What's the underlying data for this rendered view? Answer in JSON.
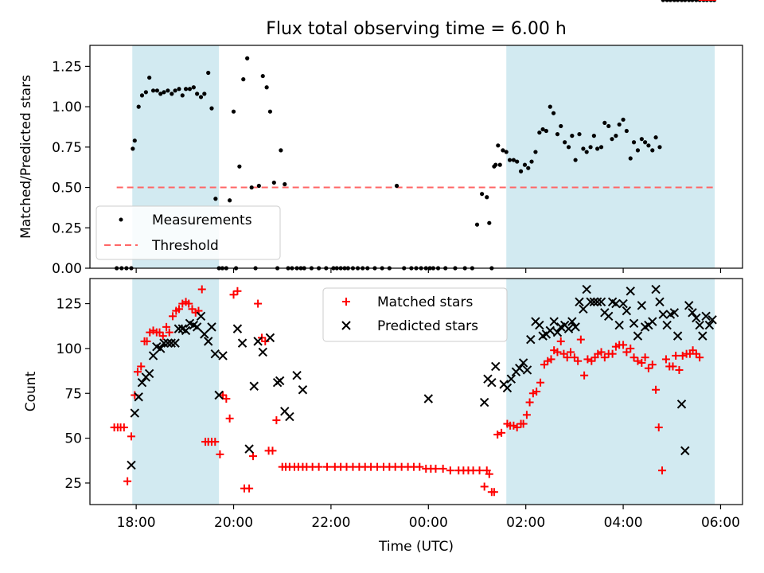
{
  "title": "Flux total observing time = 6.00 h",
  "colors": {
    "span": "#add8e6",
    "measurement": "#000000",
    "threshold": "#ff6666",
    "matched": "#ff0000",
    "predicted": "#000000"
  },
  "chart_data": [
    {
      "type": "scatter",
      "ylabel": "Matched/Predicted stars",
      "ylim": [
        0,
        1.38
      ],
      "yticks": [
        0.0,
        0.25,
        0.5,
        0.75,
        1.0,
        1.25
      ],
      "ytick_labels": [
        "0.00",
        "0.25",
        "0.50",
        "0.75",
        "1.00",
        "1.25"
      ],
      "threshold": 0.5,
      "legend": [
        "Measurements",
        "Threshold"
      ],
      "legend_position": "lower-left",
      "x_hours": [
        17.6,
        17.7,
        17.8,
        17.9,
        17.93,
        17.97,
        18.05,
        18.12,
        18.2,
        18.27,
        18.35,
        18.43,
        18.5,
        18.57,
        18.65,
        18.73,
        18.8,
        18.88,
        18.95,
        19.02,
        19.1,
        19.18,
        19.25,
        19.33,
        19.4,
        19.48,
        19.55,
        19.63,
        19.7,
        19.77,
        19.85,
        19.92,
        20.0,
        20.05,
        20.12,
        20.2,
        20.28,
        20.37,
        20.45,
        20.52,
        20.6,
        20.68,
        20.75,
        20.83,
        20.9,
        20.97,
        21.05,
        21.12,
        21.2,
        21.3,
        21.38,
        21.45,
        21.6,
        21.75,
        21.9,
        22.05,
        22.12,
        22.2,
        22.28,
        22.35,
        22.45,
        22.55,
        22.65,
        22.75,
        22.9,
        23.05,
        23.2,
        23.35,
        23.5,
        23.65,
        23.75,
        23.85,
        23.95,
        24.03,
        24.1,
        24.2,
        24.35,
        24.55,
        24.75,
        24.9,
        25.0,
        25.1,
        25.2,
        25.25,
        25.3,
        25.35,
        25.38,
        25.43,
        25.47,
        25.53,
        25.6,
        25.67,
        25.75,
        25.82,
        25.9,
        25.98,
        26.05,
        26.12,
        26.2,
        26.28,
        26.35,
        26.42,
        26.5,
        26.57,
        26.65,
        26.72,
        26.8,
        26.88,
        26.95,
        27.02,
        27.1,
        27.18,
        27.25,
        27.33,
        27.4,
        27.47,
        27.55,
        27.62,
        27.7,
        27.77,
        27.85,
        27.92,
        28.0,
        28.07,
        28.15,
        28.22,
        28.3,
        28.38,
        28.45,
        28.52,
        28.6,
        28.67,
        28.75,
        28.82,
        28.9,
        28.97,
        29.05,
        29.12,
        29.2,
        29.27,
        29.35,
        29.42,
        29.5,
        29.57,
        29.65,
        29.72,
        29.8,
        29.87
      ],
      "ratio": [
        0,
        0,
        0,
        0,
        0.74,
        0.79,
        1.0,
        1.07,
        1.09,
        1.18,
        1.1,
        1.1,
        1.08,
        1.09,
        1.1,
        1.08,
        1.1,
        1.11,
        1.07,
        1.11,
        1.11,
        1.12,
        1.08,
        1.06,
        1.08,
        1.21,
        0.99,
        0.43,
        0,
        0,
        0,
        0.42,
        0.97,
        0,
        0.63,
        1.17,
        1.3,
        0.5,
        0,
        0.51,
        1.19,
        1.12,
        0.97,
        0.53,
        0,
        0.73,
        0.52,
        0,
        0,
        0,
        0,
        0,
        0,
        0,
        0,
        0,
        0,
        0,
        0,
        0,
        0,
        0,
        0,
        0,
        0,
        0,
        0,
        0.51,
        0,
        0,
        0,
        0,
        0,
        0,
        0,
        0,
        0,
        0,
        0,
        0,
        0.27,
        0.46,
        0.44,
        0.28,
        0,
        0.63,
        0.64,
        0.76,
        0.64,
        0.73,
        0.72,
        0.67,
        0.67,
        0.66,
        0.6,
        0.64,
        0.62,
        0.66,
        0.72,
        0.84,
        0.86,
        0.85,
        1.0,
        0.96,
        0.83,
        0.88,
        0.78,
        0.75,
        0.82,
        0.67,
        0.83,
        0.74,
        0.72,
        0.75,
        0.82,
        0.74,
        0.75,
        0.9,
        0.88,
        0.8,
        0.82,
        0.89,
        0.92,
        0.85,
        0.68,
        0.78,
        0.73,
        0.8,
        0.78,
        0.76,
        0.73,
        0.81,
        0.75
      ]
    },
    {
      "type": "scatter",
      "xlabel": "Time (UTC)",
      "ylabel": "Count",
      "ylim": [
        13,
        139
      ],
      "yticks": [
        25,
        50,
        75,
        100,
        125
      ],
      "ytick_labels": [
        "25",
        "50",
        "75",
        "100",
        "125"
      ],
      "legend": [
        "Matched stars",
        "Predicted stars"
      ],
      "legend_position": "upper-center",
      "matched_x": [
        17.55,
        17.62,
        17.68,
        17.75,
        17.82,
        17.9,
        17.97,
        18.03,
        18.1,
        18.17,
        18.22,
        18.28,
        18.35,
        18.42,
        18.48,
        18.55,
        18.62,
        18.68,
        18.75,
        18.82,
        18.88,
        18.95,
        19.02,
        19.08,
        19.15,
        19.22,
        19.28,
        19.35,
        19.42,
        19.48,
        19.55,
        19.62,
        19.72,
        19.78,
        19.85,
        19.92,
        20.0,
        20.08,
        20.22,
        20.32,
        20.4,
        20.5,
        20.58,
        20.65,
        20.72,
        20.8,
        20.88,
        21.0,
        21.07,
        21.15,
        21.25,
        21.33,
        21.42,
        21.5,
        21.62,
        21.75,
        21.92,
        22.08,
        22.2,
        22.32,
        22.45,
        22.58,
        22.7,
        22.82,
        22.95,
        23.08,
        23.2,
        23.32,
        23.45,
        23.58,
        23.7,
        23.82,
        23.95,
        24.05,
        24.15,
        24.3,
        24.45,
        24.62,
        24.72,
        24.82,
        24.92,
        25.05,
        25.15,
        25.2,
        25.25,
        25.3,
        25.35,
        25.42,
        25.5,
        25.62,
        25.68,
        25.75,
        25.82,
        25.9,
        25.95,
        26.02,
        26.08,
        26.15,
        26.22,
        26.3,
        26.38,
        26.45,
        26.52,
        26.58,
        26.65,
        26.72,
        26.78,
        26.85,
        26.92,
        27.0,
        27.07,
        27.13,
        27.2,
        27.27,
        27.35,
        27.42,
        27.48,
        27.55,
        27.62,
        27.7,
        27.78,
        27.85,
        27.92,
        28.0,
        28.07,
        28.15,
        28.22,
        28.3,
        28.38,
        28.45,
        28.52,
        28.6,
        28.67,
        28.73,
        28.8,
        28.88,
        28.95,
        29.02,
        29.08,
        29.15,
        29.22,
        29.3,
        29.37,
        29.43,
        29.5,
        29.57,
        29.63,
        29.7,
        29.77,
        29.83
      ],
      "matched_y": [
        56,
        56,
        56,
        56,
        26,
        51,
        74,
        87,
        90,
        104,
        104,
        109,
        110,
        109,
        109,
        107,
        112,
        109,
        118,
        121,
        122,
        125,
        126,
        125,
        122,
        120,
        121,
        133,
        48,
        48,
        48,
        48,
        41,
        74,
        72,
        61,
        130,
        132,
        22,
        22,
        40,
        125,
        106,
        104,
        43,
        43,
        60,
        34,
        34,
        34,
        34,
        34,
        34,
        34,
        34,
        34,
        34,
        34,
        34,
        34,
        34,
        34,
        34,
        34,
        34,
        34,
        34,
        34,
        34,
        34,
        34,
        34,
        33,
        33,
        33,
        33,
        32,
        32,
        32,
        32,
        32,
        32,
        23,
        32,
        30,
        20,
        20,
        52,
        53,
        58,
        57,
        57,
        56,
        58,
        58,
        63,
        70,
        75,
        76,
        81,
        91,
        93,
        94,
        99,
        98,
        104,
        97,
        95,
        98,
        95,
        93,
        105,
        85,
        94,
        93,
        95,
        97,
        98,
        95,
        97,
        97,
        101,
        102,
        102,
        98,
        100,
        95,
        93,
        92,
        95,
        89,
        91,
        77,
        56,
        32,
        94,
        90,
        90,
        96,
        88,
        96,
        97,
        97,
        99,
        97,
        95
      ],
      "predicted_x": [
        17.9,
        17.97,
        18.05,
        18.12,
        18.2,
        18.27,
        18.35,
        18.42,
        18.5,
        18.57,
        18.65,
        18.72,
        18.8,
        18.87,
        18.95,
        19.02,
        19.1,
        19.18,
        19.25,
        19.33,
        19.4,
        19.48,
        19.55,
        19.62,
        19.7,
        19.78,
        20.08,
        20.18,
        20.32,
        20.42,
        20.5,
        20.6,
        20.75,
        20.9,
        20.95,
        21.05,
        21.15,
        21.3,
        21.42,
        24.0,
        25.15,
        25.22,
        25.3,
        25.38,
        25.55,
        25.62,
        25.7,
        25.8,
        25.87,
        25.95,
        26.03,
        26.1,
        26.2,
        26.28,
        26.35,
        26.42,
        26.5,
        26.58,
        26.65,
        26.72,
        26.8,
        26.88,
        26.95,
        27.02,
        27.1,
        27.18,
        27.25,
        27.33,
        27.4,
        27.47,
        27.55,
        27.62,
        27.7,
        27.78,
        27.85,
        27.92,
        28.0,
        28.07,
        28.15,
        28.22,
        28.3,
        28.38,
        28.45,
        28.52,
        28.6,
        28.67,
        28.75,
        28.82,
        28.9,
        28.97,
        29.05,
        29.12,
        29.2,
        29.27,
        29.35,
        29.42,
        29.5,
        29.57,
        29.63,
        29.7,
        29.77,
        29.83
      ],
      "predicted_y": [
        35,
        64,
        73,
        81,
        84,
        86,
        96,
        101,
        100,
        103,
        103,
        103,
        103,
        111,
        111,
        110,
        114,
        113,
        112,
        118,
        108,
        104,
        112,
        97,
        74,
        96,
        111,
        103,
        44,
        79,
        104,
        98,
        106,
        81,
        82,
        65,
        62,
        85,
        77,
        72,
        70,
        83,
        81,
        90,
        80,
        78,
        83,
        87,
        89,
        92,
        88,
        105,
        115,
        113,
        107,
        108,
        110,
        115,
        109,
        112,
        113,
        111,
        115,
        112,
        126,
        122,
        133,
        126,
        126,
        126,
        126,
        120,
        118,
        126,
        125,
        113,
        125,
        121,
        132,
        114,
        107,
        124,
        112,
        113,
        115,
        133,
        126,
        119,
        113,
        119,
        120,
        107,
        69,
        43,
        124,
        120,
        117,
        113,
        107,
        118,
        113,
        116
      ],
      "spans": [
        [
          17.92,
          19.7
        ],
        [
          25.6,
          29.88
        ]
      ]
    }
  ],
  "x_axis": {
    "range": [
      17.05,
      30.45
    ],
    "ticks": [
      18,
      20,
      22,
      24,
      26,
      28,
      30
    ],
    "tick_labels": [
      "18:00",
      "20:00",
      "22:00",
      "00:00",
      "02:00",
      "04:00",
      "06:00"
    ],
    "threshold_range": [
      17.6,
      29.87
    ]
  }
}
